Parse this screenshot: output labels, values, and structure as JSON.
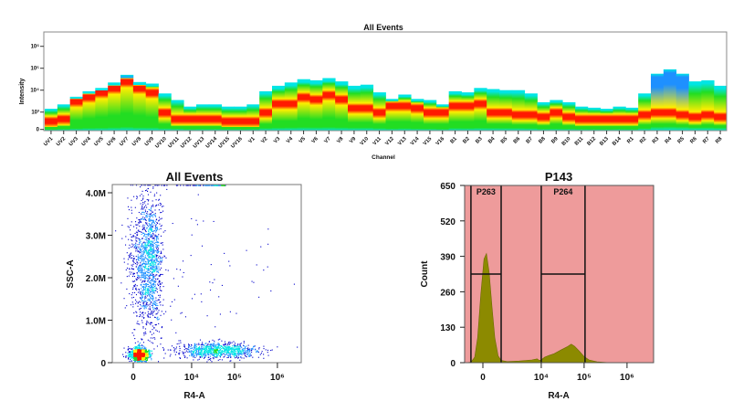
{
  "chart_data": [
    {
      "type": "heatmap",
      "title": "All Events",
      "xlabel": "Channel",
      "ylabel": "Intensity",
      "y_scale": "log",
      "y_ticks": [
        "0",
        "10³",
        "10⁴",
        "10⁵",
        "10⁶"
      ],
      "y_tick_values": [
        0,
        1000,
        10000,
        100000,
        1000000
      ],
      "channels": [
        "UV1",
        "UV2",
        "UV3",
        "UV4",
        "UV5",
        "UV6",
        "UV7",
        "UV8",
        "UV9",
        "UV10",
        "UV11",
        "UV12",
        "UV13",
        "UV14",
        "UV15",
        "UV16",
        "V1",
        "V2",
        "V3",
        "V4",
        "V5",
        "V6",
        "V7",
        "V8",
        "V9",
        "V10",
        "V11",
        "V12",
        "V13",
        "V14",
        "V15",
        "V16",
        "B1",
        "B2",
        "B3",
        "B4",
        "B5",
        "B6",
        "B7",
        "B8",
        "B9",
        "B10",
        "B11",
        "B12",
        "B13",
        "B14",
        "R1",
        "R2",
        "R3",
        "R4",
        "R5",
        "R6",
        "R7",
        "R8"
      ],
      "max_log10_intensity": [
        3.15,
        3.35,
        3.7,
        3.95,
        4.1,
        4.35,
        4.7,
        4.37,
        4.3,
        3.85,
        3.55,
        3.25,
        3.35,
        3.35,
        3.25,
        3.25,
        3.35,
        3.95,
        4.2,
        4.35,
        4.5,
        4.45,
        4.55,
        4.4,
        4.2,
        4.25,
        3.9,
        3.6,
        3.8,
        3.6,
        3.55,
        3.35,
        3.95,
        3.9,
        4.1,
        4.05,
        4.0,
        4.0,
        3.85,
        3.45,
        3.55,
        3.45,
        3.25,
        3.2,
        3.15,
        3.25,
        3.2,
        3.85,
        4.75,
        4.95,
        4.75,
        4.4,
        4.45,
        4.2
      ],
      "peak_log10_intensity": [
        2.6,
        2.7,
        3.5,
        3.7,
        3.9,
        4.1,
        4.4,
        4.1,
        3.9,
        3.0,
        2.7,
        2.7,
        2.7,
        2.7,
        2.6,
        2.6,
        2.6,
        3.0,
        3.4,
        3.4,
        3.7,
        3.6,
        3.8,
        3.6,
        3.2,
        3.2,
        3.0,
        3.3,
        3.3,
        3.2,
        3.0,
        3.0,
        3.3,
        3.3,
        3.4,
        3.0,
        3.0,
        2.9,
        2.9,
        2.8,
        3.0,
        2.8,
        2.7,
        2.7,
        2.7,
        2.7,
        2.7,
        2.9,
        3.0,
        3.0,
        2.9,
        2.8,
        2.9,
        2.8
      ],
      "colors": {
        "low": "#00e5e5",
        "mid": "#22dd22",
        "high": "#ffee00",
        "peak": "#ff1a00",
        "top_high": "#1e90ff"
      }
    },
    {
      "type": "scatter",
      "title": "All Events",
      "xlabel": "R4-A",
      "ylabel": "SSC-A",
      "x_scale": "biexponential",
      "x_ticks": [
        "0",
        "10⁴",
        "10⁵",
        "10⁶"
      ],
      "x_tick_values": [
        0,
        10000,
        100000,
        1000000
      ],
      "y_ticks": [
        "0",
        "1.0M",
        "2.0M",
        "3.0M",
        "4.0M"
      ],
      "y_tick_values": [
        0,
        1000000,
        2000000,
        3000000,
        4000000
      ],
      "ylim": [
        0,
        4200000
      ],
      "populations": [
        {
          "x_center": 300,
          "x_spread": 250,
          "y_center": 200000,
          "y_spread": 90000,
          "count": 900
        },
        {
          "x_center": 800,
          "x_spread": 500,
          "y_center": 2400000,
          "y_spread": 800000,
          "count": 1500
        },
        {
          "x_center": 40000,
          "x_spread_log10": 0.45,
          "y_center": 300000,
          "y_spread": 90000,
          "count": 900
        },
        {
          "x_center": 5000,
          "x_spread_log10": 1.2,
          "y_center": 1800000,
          "y_spread": 1200000,
          "count": 120
        }
      ],
      "color_scale": [
        "#0000cc",
        "#1e90ff",
        "#00e5e5",
        "#22dd22",
        "#ffee00",
        "#ff1a00"
      ]
    },
    {
      "type": "area",
      "title": "P143",
      "xlabel": "R4-A",
      "ylabel": "Count",
      "x_scale": "biexponential",
      "x_ticks": [
        "0",
        "10⁴",
        "10⁵",
        "10⁶"
      ],
      "x_tick_values": [
        0,
        10000,
        100000,
        1000000
      ],
      "y_ticks": [
        "0",
        "130",
        "260",
        "390",
        "520",
        "650"
      ],
      "y_tick_values": [
        0,
        130,
        260,
        390,
        520,
        650
      ],
      "ylim": [
        0,
        650
      ],
      "points": [
        [
          -900,
          0
        ],
        [
          -600,
          2
        ],
        [
          -400,
          20
        ],
        [
          -250,
          90
        ],
        [
          -100,
          250
        ],
        [
          50,
          380
        ],
        [
          170,
          400
        ],
        [
          300,
          330
        ],
        [
          450,
          200
        ],
        [
          600,
          90
        ],
        [
          800,
          25
        ],
        [
          1000,
          8
        ],
        [
          1500,
          4
        ],
        [
          3000,
          6
        ],
        [
          6000,
          10
        ],
        [
          8000,
          14
        ],
        [
          9000,
          8
        ],
        [
          10000,
          10
        ],
        [
          12000,
          20
        ],
        [
          15000,
          26
        ],
        [
          20000,
          33
        ],
        [
          30000,
          48
        ],
        [
          40000,
          58
        ],
        [
          50000,
          68
        ],
        [
          60000,
          60
        ],
        [
          80000,
          40
        ],
        [
          100000,
          22
        ],
        [
          130000,
          10
        ],
        [
          200000,
          3
        ],
        [
          400000,
          0
        ],
        [
          3000000,
          0
        ]
      ],
      "fill_color": "#8c8a00",
      "background_color": "#ee9b9b",
      "gates": [
        {
          "name": "P263",
          "x_range": [
            -600,
            1000
          ],
          "level": 325
        },
        {
          "name": "P264",
          "x_range": [
            10000,
            105000
          ],
          "level": 325
        }
      ]
    }
  ]
}
